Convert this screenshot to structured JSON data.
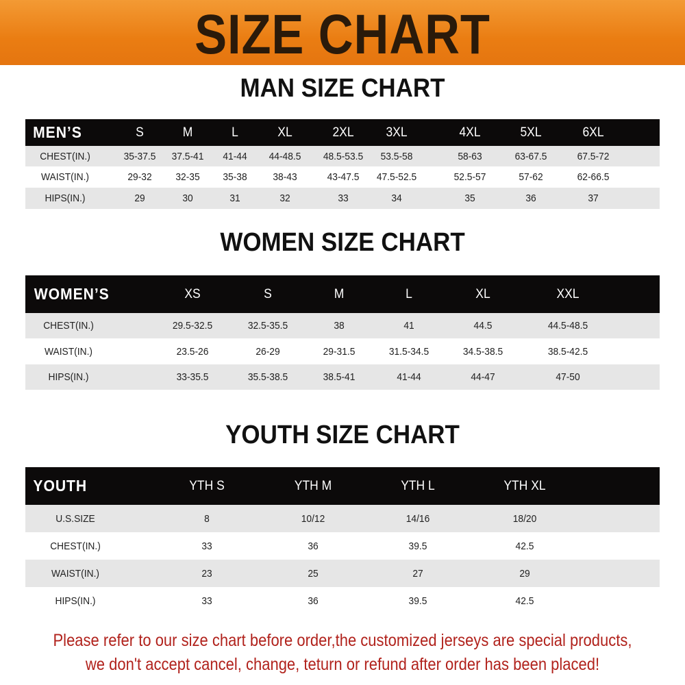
{
  "banner": {
    "title": "SIZE CHART",
    "color": "#ea7d12"
  },
  "men": {
    "title": "MAN SIZE CHART",
    "header": [
      "MEN’S",
      "S",
      "M",
      "L",
      "XL",
      "2XL",
      "3XL",
      "4XL",
      "5XL",
      "6XL"
    ],
    "rows": [
      [
        "CHEST(IN.)",
        "35-37.5",
        "37.5-41",
        "41-44",
        "44-48.5",
        "48.5-53.5",
        "53.5-58",
        "58-63",
        "63-67.5",
        "67.5-72"
      ],
      [
        "WAIST(IN.)",
        "29-32",
        "32-35",
        "35-38",
        "38-43",
        "43-47.5",
        "47.5-52.5",
        "52.5-57",
        "57-62",
        "62-66.5"
      ],
      [
        "HIPS(IN.)",
        "29",
        "30",
        "31",
        "32",
        "33",
        "34",
        "35",
        "36",
        "37"
      ]
    ]
  },
  "women": {
    "title": "WOMEN SIZE CHART",
    "header": [
      "WOMEN’S",
      "XS",
      "S",
      "M",
      "L",
      "XL",
      "XXL"
    ],
    "rows": [
      [
        "CHEST(IN.)",
        "29.5-32.5",
        "32.5-35.5",
        "38",
        "41",
        "44.5",
        "44.5-48.5"
      ],
      [
        "WAIST(IN.)",
        "23.5-26",
        "26-29",
        "29-31.5",
        "31.5-34.5",
        "34.5-38.5",
        "38.5-42.5"
      ],
      [
        "HIPS(IN.)",
        "33-35.5",
        "35.5-38.5",
        "38.5-41",
        "41-44",
        "44-47",
        "47-50"
      ]
    ]
  },
  "youth": {
    "title": "YOUTH SIZE CHART",
    "header": [
      "YOUTH",
      "YTH S",
      "YTH M",
      "YTH L",
      "YTH XL"
    ],
    "rows": [
      [
        "U.S.SIZE",
        "8",
        "10/12",
        "14/16",
        "18/20"
      ],
      [
        "CHEST(IN.)",
        "33",
        "36",
        "39.5",
        "42.5"
      ],
      [
        "WAIST(IN.)",
        "23",
        "25",
        "27",
        "29"
      ],
      [
        "HIPS(IN.)",
        "33",
        "36",
        "39.5",
        "42.5"
      ]
    ]
  },
  "footer": {
    "line1": "Please refer to our size chart before order,the customized jerseys are special products,",
    "line2": "we don't accept cancel, change, teturn or refund after order has been placed!",
    "color": "#b1221c"
  }
}
